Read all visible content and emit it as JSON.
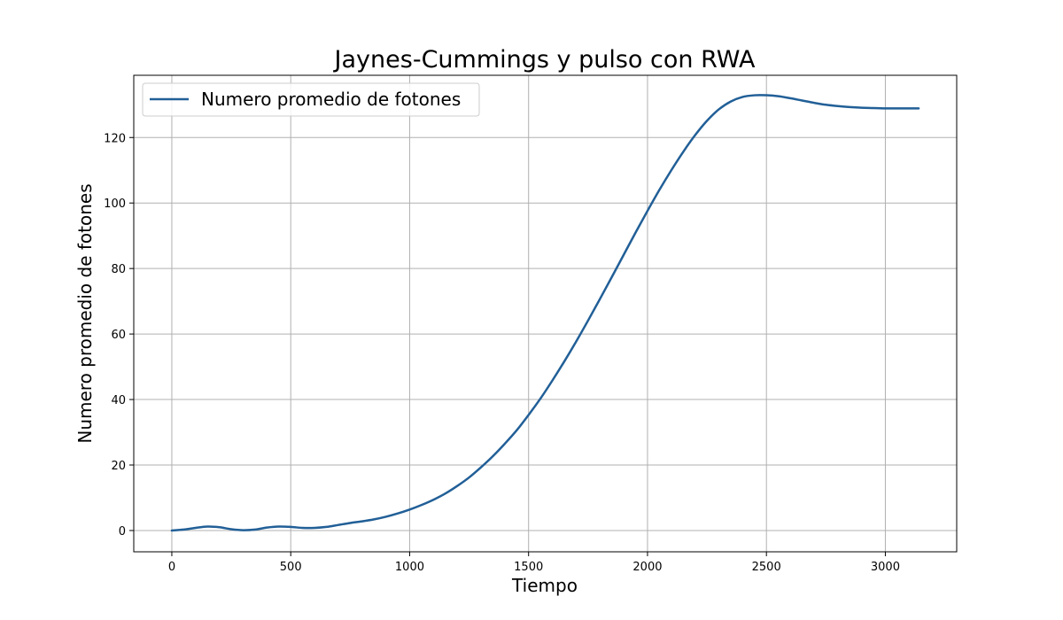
{
  "chart_data": {
    "type": "line",
    "title": "Jaynes-Cummings y pulso con RWA",
    "xlabel": "Tiempo",
    "ylabel": "Numero promedio de fotones",
    "xlim": [
      -160,
      3300
    ],
    "ylim": [
      -6.5,
      139
    ],
    "xticks": [
      0,
      500,
      1000,
      1500,
      2000,
      2500,
      3000
    ],
    "yticks": [
      0,
      20,
      40,
      60,
      80,
      100,
      120
    ],
    "grid": true,
    "legend_position": "upper-left",
    "series": [
      {
        "name": "Numero promedio de fotones",
        "color": "#215f97",
        "x": [
          0,
          50,
          100,
          150,
          200,
          250,
          300,
          350,
          400,
          450,
          500,
          550,
          600,
          650,
          700,
          750,
          800,
          850,
          900,
          950,
          1000,
          1050,
          1100,
          1150,
          1200,
          1250,
          1300,
          1350,
          1400,
          1450,
          1500,
          1550,
          1600,
          1650,
          1700,
          1750,
          1800,
          1850,
          1900,
          1950,
          2000,
          2050,
          2100,
          2150,
          2200,
          2250,
          2300,
          2350,
          2400,
          2450,
          2500,
          2550,
          2600,
          2650,
          2700,
          2750,
          2800,
          2850,
          2900,
          2950,
          3000,
          3050,
          3100,
          3140
        ],
        "values": [
          0.0,
          0.3,
          0.8,
          1.2,
          1.0,
          0.4,
          0.1,
          0.3,
          0.9,
          1.2,
          1.1,
          0.8,
          0.8,
          1.1,
          1.7,
          2.3,
          2.8,
          3.4,
          4.2,
          5.2,
          6.4,
          7.8,
          9.4,
          11.3,
          13.6,
          16.2,
          19.3,
          22.7,
          26.5,
          30.6,
          35.3,
          40.3,
          45.8,
          51.6,
          57.7,
          64.1,
          70.7,
          77.4,
          84.2,
          91.0,
          97.6,
          104.0,
          110.0,
          115.6,
          120.7,
          125.1,
          128.6,
          131.0,
          132.4,
          132.9,
          132.9,
          132.6,
          132.0,
          131.3,
          130.6,
          130.0,
          129.6,
          129.3,
          129.1,
          129.0,
          128.9,
          128.9,
          128.9,
          128.9
        ]
      }
    ]
  }
}
